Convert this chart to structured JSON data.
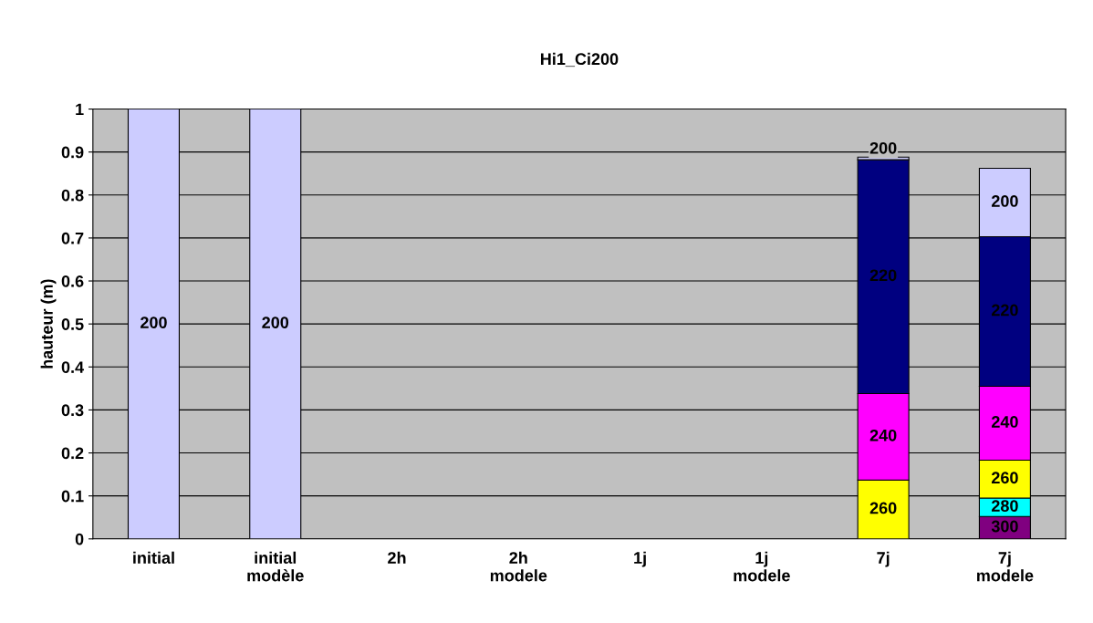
{
  "chart_data": {
    "type": "bar",
    "title": "Hi1_Ci200",
    "ylabel": "hauteur (m)",
    "stacked": true,
    "categories": [
      "initial",
      "initial\nmodèle",
      "2h",
      "2h\nmodele",
      "1j",
      "1j\nmodele",
      "7j",
      "7j\nmodele"
    ],
    "series": [
      {
        "name": "300",
        "color": "#800080",
        "values": [
          0,
          0,
          0,
          0,
          0,
          0,
          0,
          0.052
        ]
      },
      {
        "name": "280",
        "color": "#00ffff",
        "values": [
          0,
          0,
          0,
          0,
          0,
          0,
          0,
          0.043
        ]
      },
      {
        "name": "260",
        "color": "#ffff00",
        "values": [
          0,
          0,
          0,
          0,
          0,
          0,
          0.137,
          0.088
        ]
      },
      {
        "name": "240",
        "color": "#ff00ff",
        "values": [
          0,
          0,
          0,
          0,
          0,
          0,
          0.201,
          0.172
        ]
      },
      {
        "name": "220",
        "color": "#000080",
        "values": [
          0,
          0,
          0,
          0,
          0,
          0,
          0.544,
          0.348
        ]
      },
      {
        "name": "200",
        "color": "#ccccff",
        "values": [
          1.0,
          1.0,
          0,
          0,
          0,
          0,
          0.006,
          0.159
        ]
      }
    ],
    "ylim": [
      0,
      1
    ],
    "yticks": [
      0,
      0.1,
      0.2,
      0.3,
      0.4,
      0.5,
      0.6,
      0.7,
      0.8,
      0.9,
      1
    ],
    "grid": "y",
    "legend": false
  }
}
